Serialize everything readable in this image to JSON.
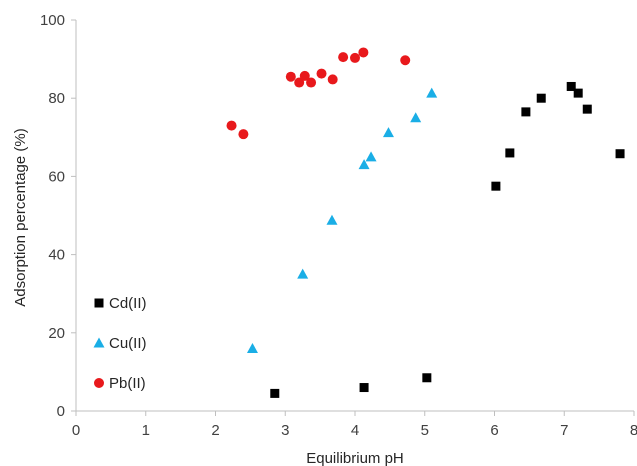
{
  "chart_data": {
    "type": "scatter",
    "title": "",
    "xlabel": "Equilibrium pH",
    "ylabel": "Adsorption percentage (%)",
    "xlim": [
      0,
      8
    ],
    "ylim": [
      0,
      100
    ],
    "x_ticks": [
      "0",
      "1",
      "2",
      "3",
      "4",
      "5",
      "6",
      "7",
      "8"
    ],
    "y_ticks": [
      "0",
      "20",
      "40",
      "60",
      "80",
      "100"
    ],
    "grid": false,
    "legend_position": "bottom-left",
    "series": [
      {
        "name": "Cd(II)",
        "marker": "square",
        "color": "#000000",
        "points": [
          {
            "x": 2.85,
            "y": 4.5
          },
          {
            "x": 4.13,
            "y": 6.0
          },
          {
            "x": 5.03,
            "y": 8.5
          },
          {
            "x": 6.02,
            "y": 57.5
          },
          {
            "x": 6.22,
            "y": 66.0
          },
          {
            "x": 6.45,
            "y": 76.5
          },
          {
            "x": 6.67,
            "y": 80.0
          },
          {
            "x": 7.1,
            "y": 83.0
          },
          {
            "x": 7.2,
            "y": 81.3
          },
          {
            "x": 7.33,
            "y": 77.2
          },
          {
            "x": 7.8,
            "y": 65.8
          }
        ]
      },
      {
        "name": "Cu(II)",
        "marker": "triangle",
        "color": "#1aaee6",
        "points": [
          {
            "x": 2.53,
            "y": 16.0
          },
          {
            "x": 3.25,
            "y": 35.0
          },
          {
            "x": 3.67,
            "y": 48.8
          },
          {
            "x": 4.13,
            "y": 63.0
          },
          {
            "x": 4.23,
            "y": 65.0
          },
          {
            "x": 4.48,
            "y": 71.2
          },
          {
            "x": 4.87,
            "y": 75.0
          },
          {
            "x": 5.1,
            "y": 81.3
          }
        ]
      },
      {
        "name": "Pb(II)",
        "marker": "circle",
        "color": "#e8191c",
        "points": [
          {
            "x": 2.23,
            "y": 73.0
          },
          {
            "x": 2.4,
            "y": 70.8
          },
          {
            "x": 3.08,
            "y": 85.5
          },
          {
            "x": 3.2,
            "y": 84.0
          },
          {
            "x": 3.28,
            "y": 85.7
          },
          {
            "x": 3.37,
            "y": 84.0
          },
          {
            "x": 3.52,
            "y": 86.3
          },
          {
            "x": 3.68,
            "y": 84.8
          },
          {
            "x": 3.83,
            "y": 90.5
          },
          {
            "x": 4.0,
            "y": 90.3
          },
          {
            "x": 4.12,
            "y": 91.7
          },
          {
            "x": 4.72,
            "y": 89.7
          }
        ]
      }
    ]
  }
}
